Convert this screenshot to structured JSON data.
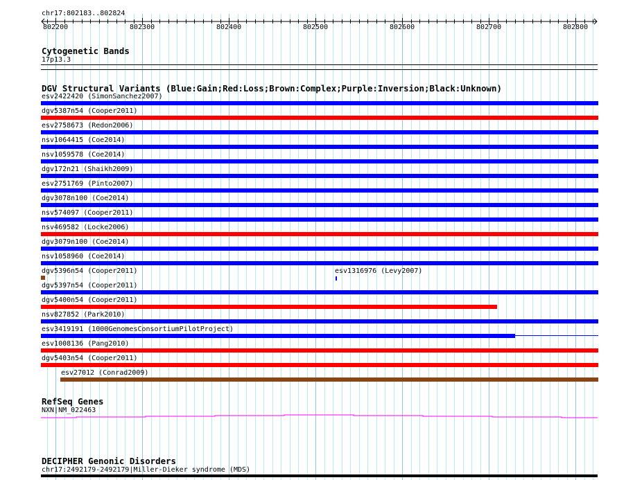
{
  "view": {
    "location": "chr17:802183..802824",
    "start": 802183,
    "end": 802824
  },
  "ruler": {
    "tick_labels": [
      "802200",
      "802300",
      "802400",
      "802500",
      "802600",
      "802700",
      "802800"
    ]
  },
  "cyto": {
    "title": "Cytogenetic Bands",
    "band": "17p13.3"
  },
  "dgv": {
    "title": "DGV Structural Variants (Blue:Gain;Red:Loss;Brown:Complex;Purple:Inversion;Black:Unknown)",
    "colors": {
      "gain": "#0000ff",
      "loss": "#ff0000",
      "complex": "#8b4513"
    },
    "features": [
      {
        "label": "esv2422420 (SimonSanchez2007)",
        "type": "gain",
        "start": 802183,
        "end": 802824,
        "row": 0
      },
      {
        "label": "dgv5387n54 (Cooper2011)",
        "type": "loss",
        "start": 802183,
        "end": 802824,
        "row": 1
      },
      {
        "label": "esv2758673 (Redon2006)",
        "type": "gain",
        "start": 802183,
        "end": 802824,
        "row": 2
      },
      {
        "label": "nsv1064415 (Coe2014)",
        "type": "gain",
        "start": 802183,
        "end": 802824,
        "row": 3
      },
      {
        "label": "nsv1059578 (Coe2014)",
        "type": "gain",
        "start": 802183,
        "end": 802824,
        "row": 4
      },
      {
        "label": "dgv172n21 (Shaikh2009)",
        "type": "gain",
        "start": 802183,
        "end": 802824,
        "row": 5
      },
      {
        "label": "esv2751769 (Pinto2007)",
        "type": "gain",
        "start": 802183,
        "end": 802824,
        "row": 6
      },
      {
        "label": "dgv3078n100 (Coe2014)",
        "type": "gain",
        "start": 802183,
        "end": 802824,
        "row": 7
      },
      {
        "label": "nsv574097 (Cooper2011)",
        "type": "gain",
        "start": 802183,
        "end": 802824,
        "row": 8
      },
      {
        "label": "nsv469582 (Locke2006)",
        "type": "loss",
        "start": 802183,
        "end": 802824,
        "row": 9
      },
      {
        "label": "dgv3079n100 (Coe2014)",
        "type": "gain",
        "start": 802183,
        "end": 802824,
        "row": 10
      },
      {
        "label": "nsv1058960 (Coe2014)",
        "type": "gain",
        "start": 802183,
        "end": 802824,
        "row": 11
      },
      {
        "label": "dgv5396n54 (Cooper2011)",
        "type": "complex",
        "start": 802183,
        "end": 802185,
        "row": 12
      },
      {
        "label": "esv1316976 (Levy2007)",
        "type": "gain",
        "start": 802523,
        "end": 802524,
        "row": 12,
        "thin": true
      },
      {
        "label": "dgv5397n54 (Cooper2011)",
        "type": "gain",
        "start": 802183,
        "end": 802824,
        "row": 13
      },
      {
        "label": "dgv5400n54 (Cooper2011)",
        "type": "loss",
        "start": 802183,
        "end": 802707,
        "row": 14
      },
      {
        "label": "nsv827852 (Park2010)",
        "type": "gain",
        "start": 802183,
        "end": 802824,
        "row": 15
      },
      {
        "label": "esv3419191 (1000GenomesConsortiumPilotProject)",
        "type": "gain",
        "start": 802183,
        "end": 802728,
        "row": 16,
        "line_to": 802824
      },
      {
        "label": "esv1008136 (Pang2010)",
        "type": "loss",
        "start": 802183,
        "end": 802824,
        "row": 17
      },
      {
        "label": "dgv5403n54 (Cooper2011)",
        "type": "loss",
        "start": 802183,
        "end": 802824,
        "row": 18
      },
      {
        "label": "esv27012 (Conrad2009)",
        "type": "complex",
        "start": 802205,
        "end": 802824,
        "row": 19
      }
    ]
  },
  "refseq": {
    "title": "RefSeq Genes",
    "gene": "NXN|NM_022463",
    "color": "#ff00ff"
  },
  "decipher": {
    "title": "DECIPHER Genonic Disorders",
    "feature": "chr17:2492179-2492179|Miller-Dieker syndrome (MDS)"
  }
}
